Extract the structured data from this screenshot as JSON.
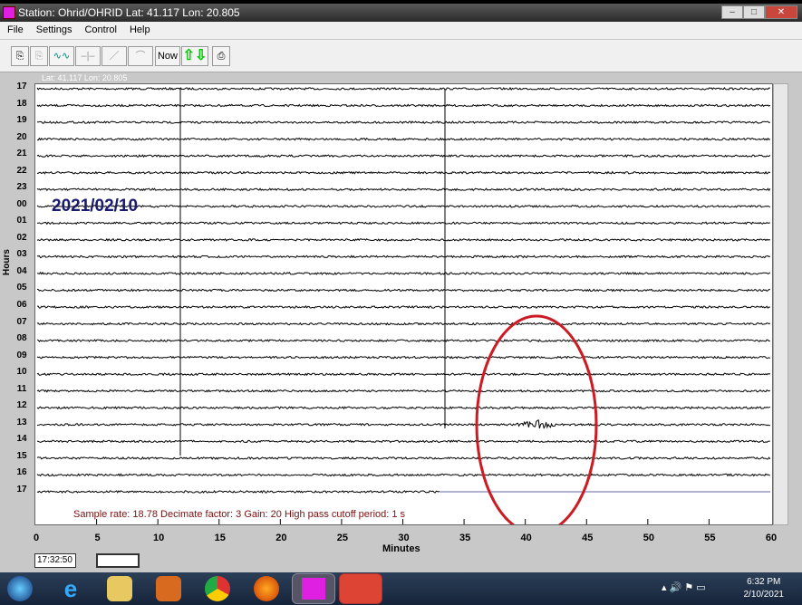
{
  "window": {
    "title": "Station: Ohrid/OHRID Lat: 41.117 Lon: 20.805"
  },
  "menu": [
    "File",
    "Settings",
    "Control",
    "Help"
  ],
  "toolbar": {
    "now_label": "Now",
    "icons": [
      "export-icon",
      "copy-icon",
      "waveform-icon",
      "pulse-icon",
      "ramp-icon",
      "filter-curve-icon",
      "up-down-arrows-icon",
      "print-icon"
    ]
  },
  "plot": {
    "location_label": "Lat: 41.117 Lon: 20.805",
    "date": "2021/02/10",
    "hour_labels": [
      "17",
      "18",
      "19",
      "20",
      "21",
      "22",
      "23",
      "00",
      "01",
      "02",
      "03",
      "04",
      "05",
      "06",
      "07",
      "08",
      "09",
      "10",
      "11",
      "12",
      "13",
      "14",
      "15",
      "16",
      "17"
    ],
    "y_axis_label": "Hours",
    "x_ticks": [
      "0",
      "5",
      "10",
      "15",
      "20",
      "25",
      "30",
      "35",
      "40",
      "45",
      "50",
      "55",
      "60"
    ],
    "x_axis_label": "Minutes",
    "info": "Sample rate: 18.78  Decimate factor: 3  Gain: 20  High pass cutoff period: 1 s",
    "highlight_color": "#cc1b22",
    "event": {
      "hour": "13",
      "minute": 41
    }
  },
  "time_box": "17:32:50",
  "taskbar": {
    "clock_time": "6:32 PM",
    "clock_date": "2/10/2021"
  }
}
